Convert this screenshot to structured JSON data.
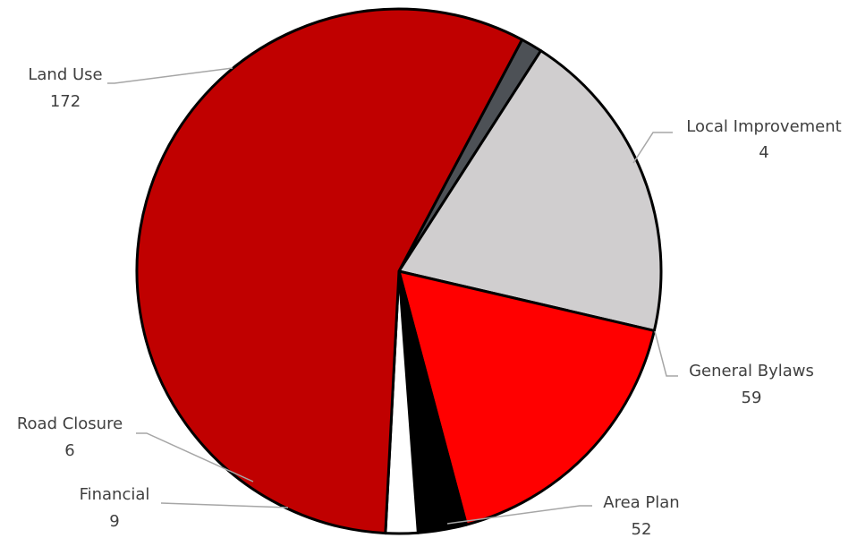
{
  "chart_data": {
    "type": "pie",
    "categories": [
      "Local Improvement",
      "General Bylaws",
      "Area Plan",
      "Financial",
      "Road Closure",
      "Land Use"
    ],
    "values": [
      4,
      59,
      52,
      9,
      6,
      172
    ],
    "colors": [
      "#4d5156",
      "#d0cecf",
      "#ff0000",
      "#000000",
      "#ffffff",
      "#c00000"
    ],
    "labels": [
      {
        "name": "Local Improvement",
        "value": "4"
      },
      {
        "name": "General Bylaws",
        "value": "59"
      },
      {
        "name": "Area Plan",
        "value": "52"
      },
      {
        "name": "Financial",
        "value": "9"
      },
      {
        "name": "Road Closure",
        "value": "6"
      },
      {
        "name": "Land Use",
        "value": "172"
      }
    ],
    "title": "",
    "legend": "none",
    "data_labels": "outside with leader lines"
  }
}
